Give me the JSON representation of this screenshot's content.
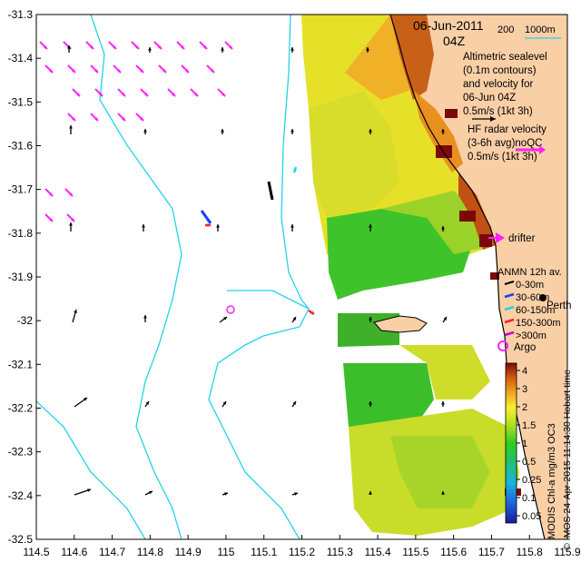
{
  "map": {
    "date": "06-Jun-2011",
    "time": "04Z",
    "isobaths": [
      "200",
      "1000m"
    ],
    "altimetry_text": [
      "Altimetric sealevel",
      "(0.1m contours)",
      "and velocity for",
      "06-Jun 04Z",
      "0.5m/s (1kt 3h)"
    ],
    "hf_radar_text": [
      "HF radar velocity",
      "(3-6h avg)noQC",
      "0.5m/s (1kt 3h)"
    ],
    "drifter_label": "drifter",
    "anmn_title": "ANMN 12h av.",
    "anmn_depths": [
      "0-30m",
      "30-60m",
      "60-150m",
      "150-300m",
      ">300m"
    ],
    "city": "Perth",
    "argo_label": "Argo",
    "colorbar_label": "MODIS Chl-a mg/m3 OC3",
    "credit": "© IMOS 24-Apr-2015 11:14:30 Hobart time",
    "colorbar_ticks": [
      "4",
      "3",
      "2",
      "1.5",
      "1",
      "0.5",
      "0.25",
      "0.1",
      "0.05"
    ],
    "colors": {
      "land": "#f9cfa6",
      "isobath": "#22d3e6",
      "hf_radar": "#ff22ff",
      "altimetry_arrow": "#000000",
      "coastline": "#000000"
    }
  },
  "chart_data": {
    "type": "map",
    "x_axis": {
      "range": [
        114.5,
        115.9
      ],
      "ticks": [
        "114.5",
        "114.6",
        "114.7",
        "114.8",
        "114.9",
        "115",
        "115.1",
        "115.2",
        "115.3",
        "115.4",
        "115.5",
        "115.6",
        "115.7",
        "115.8",
        "115.9"
      ]
    },
    "y_axis": {
      "range": [
        -32.5,
        -31.3
      ],
      "ticks": [
        "-31.3",
        "-31.4",
        "-31.5",
        "-31.6",
        "-31.7",
        "-31.8",
        "-31.9",
        "-32",
        "-32.1",
        "-32.2",
        "-32.3",
        "-32.4",
        "-32.5"
      ]
    }
  }
}
